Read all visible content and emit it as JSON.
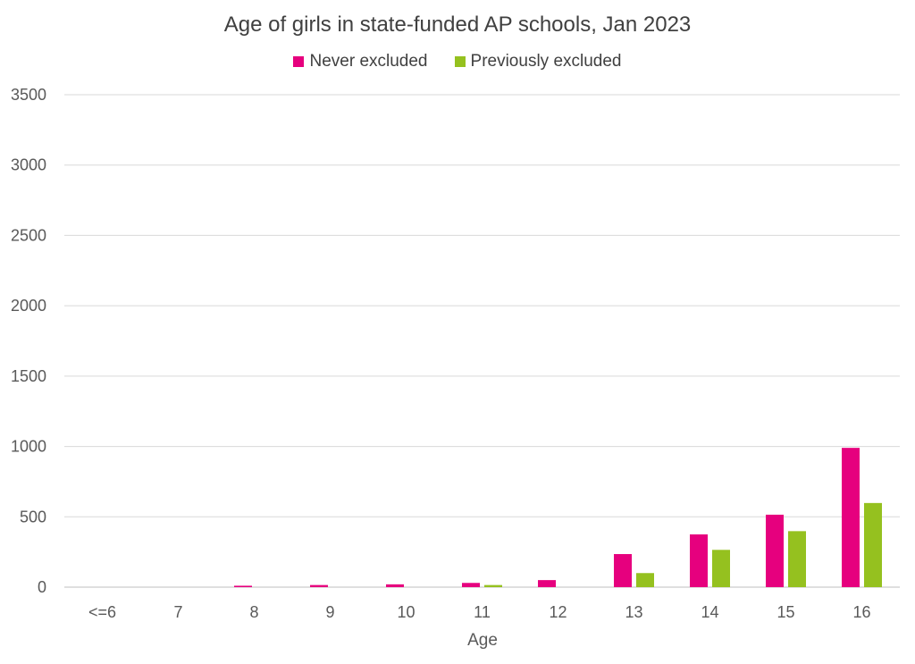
{
  "chart_data": {
    "type": "bar",
    "title": "Age of girls in state-funded AP schools, Jan 2023",
    "xlabel": "Age",
    "ylabel": "",
    "ylim": [
      0,
      3500
    ],
    "yticks": [
      0,
      500,
      1000,
      1500,
      2000,
      2500,
      3000,
      3500
    ],
    "grid": true,
    "legend_position": "top",
    "categories": [
      "<=6",
      "7",
      "8",
      "9",
      "10",
      "11",
      "12",
      "13",
      "14",
      "15",
      "16"
    ],
    "series": [
      {
        "name": "Never excluded",
        "color": "#e6007e",
        "values": [
          0,
          0,
          10,
          15,
          20,
          30,
          50,
          235,
          375,
          515,
          990
        ]
      },
      {
        "name": "Previously excluded",
        "color": "#95c11f",
        "values": [
          0,
          0,
          0,
          0,
          0,
          15,
          0,
          100,
          265,
          398,
          598
        ]
      }
    ]
  }
}
